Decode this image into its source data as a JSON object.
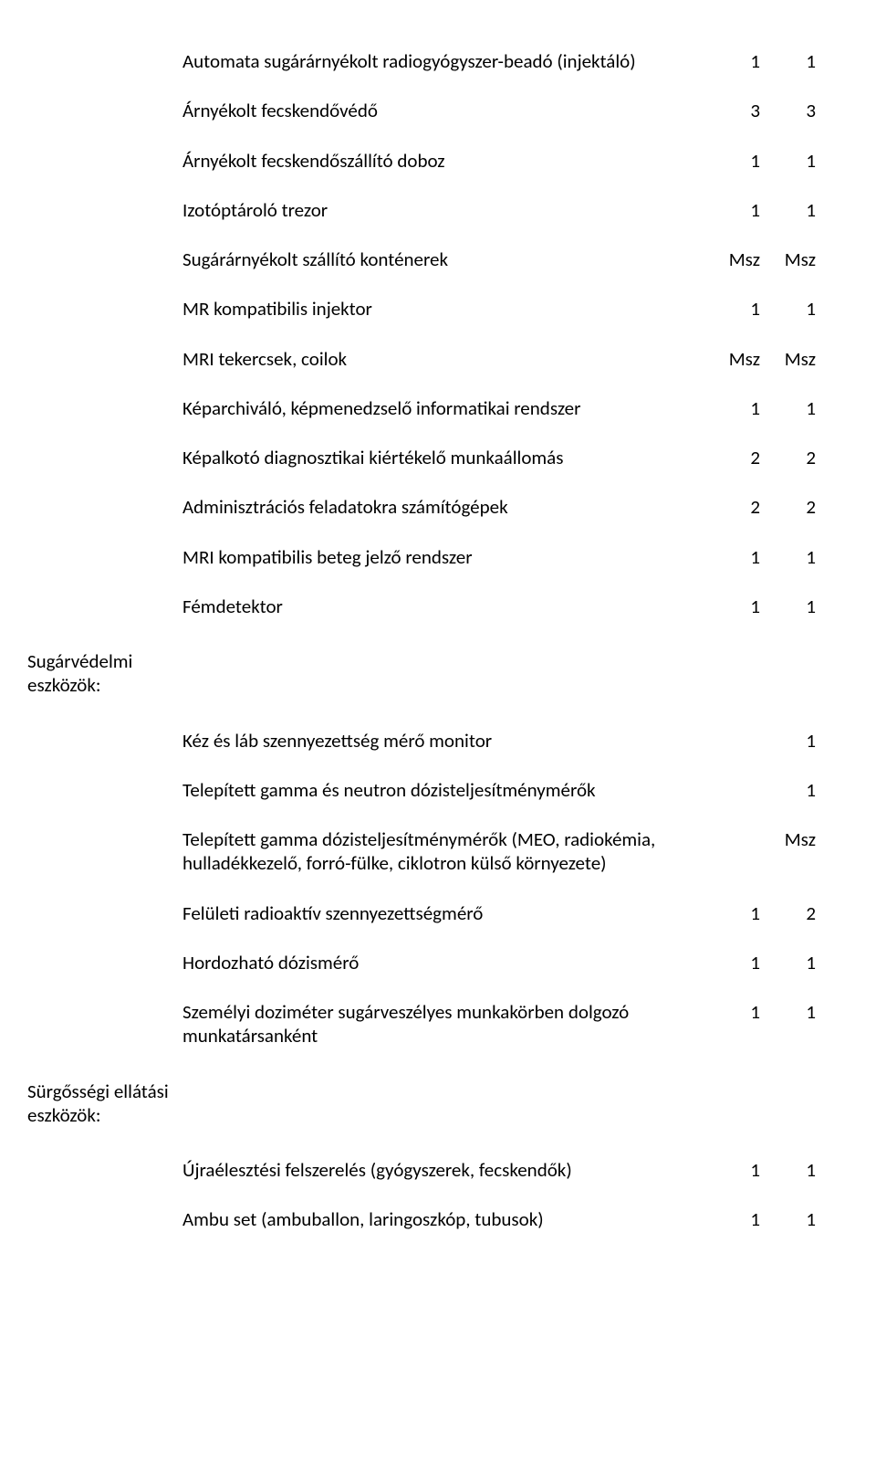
{
  "sections": [
    {
      "category": "",
      "rows": [
        {
          "desc": "Automata sugárárnyékolt radiogyógyszer-beadó (injektáló)",
          "c1": "1",
          "c2": "1"
        },
        {
          "desc": "Árnyékolt fecskendővédő",
          "c1": "3",
          "c2": "3"
        },
        {
          "desc": "Árnyékolt fecskendőszállító doboz",
          "c1": "1",
          "c2": "1"
        },
        {
          "desc": "Izotóptároló trezor",
          "c1": "1",
          "c2": "1"
        },
        {
          "desc": "Sugárárnyékolt szállító konténerek",
          "c1": "Msz",
          "c2": "Msz"
        },
        {
          "desc": "MR kompatibilis injektor",
          "c1": "1",
          "c2": "1"
        },
        {
          "desc": "MRI tekercsek, coilok",
          "c1": "Msz",
          "c2": "Msz"
        },
        {
          "desc": "Képarchiváló, képmenedzselő informatikai rendszer",
          "c1": "1",
          "c2": "1"
        },
        {
          "desc": "Képalkotó diagnosztikai kiértékelő munkaállomás",
          "c1": "2",
          "c2": "2"
        },
        {
          "desc": "Adminisztrációs feladatokra számítógépek",
          "c1": "2",
          "c2": "2"
        },
        {
          "desc": "MRI kompatibilis beteg jelző rendszer",
          "c1": "1",
          "c2": "1"
        },
        {
          "desc": "Fémdetektor",
          "c1": "1",
          "c2": "1"
        }
      ]
    },
    {
      "category": "Sugárvédelmi eszközök:",
      "rows": [
        {
          "desc": "Kéz és láb szennyezettség mérő monitor",
          "c1": "",
          "c2": "1"
        },
        {
          "desc": "Telepített gamma és neutron dózisteljesítménymérők",
          "c1": "",
          "c2": "1"
        },
        {
          "desc": "Telepített gamma dózisteljesítménymérők (MEO, radiokémia, hulladékkezelő, forró-fülke, ciklotron külső környezete)",
          "c1": "",
          "c2": "Msz"
        },
        {
          "desc": "Felületi radioaktív szennyezettségmérő",
          "c1": "1",
          "c2": "2"
        },
        {
          "desc": "Hordozható dózismérő",
          "c1": "1",
          "c2": "1"
        },
        {
          "desc": "Személyi doziméter sugárveszélyes munkakörben dolgozó munkatársanként",
          "c1": "1",
          "c2": "1"
        }
      ]
    },
    {
      "category": "Sürgősségi ellátási eszközök:",
      "rows": [
        {
          "desc": "Újraélesztési felszerelés (gyógyszerek, fecskendők)",
          "c1": "1",
          "c2": "1"
        },
        {
          "desc": "Ambu set (ambuballon, laringoszkóp, tubusok)",
          "c1": "1",
          "c2": "1"
        }
      ]
    }
  ]
}
